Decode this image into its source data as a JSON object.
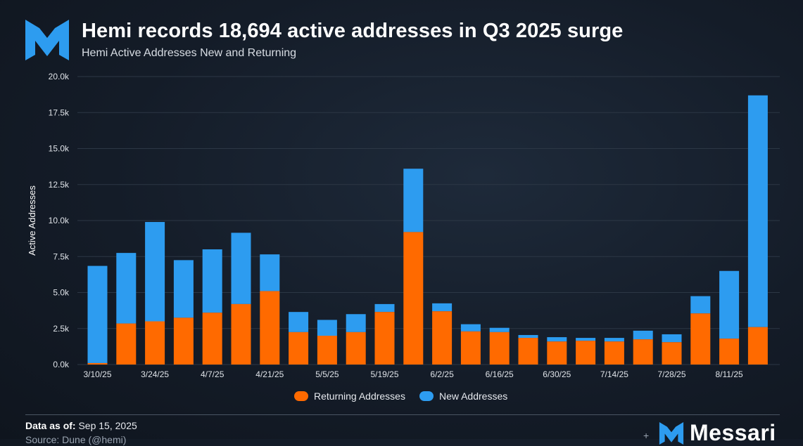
{
  "header": {
    "title": "Hemi records 18,694 active addresses in Q3 2025 surge",
    "subtitle": "Hemi Active Addresses New and Returning"
  },
  "colors": {
    "returning": "#ff6a00",
    "new": "#2d9cf0",
    "brand": "#2d9cf0",
    "grid": "#2c3745"
  },
  "chart_data": {
    "type": "bar",
    "stacked": true,
    "title": "Hemi records 18,694 active addresses in Q3 2025 surge",
    "subtitle": "Hemi Active Addresses New and Returning",
    "ylabel": "Active Addresses",
    "xlabel": "",
    "ylim": [
      0,
      20000
    ],
    "yticks": [
      "0.0k",
      "2.5k",
      "5.0k",
      "7.5k",
      "10.0k",
      "12.5k",
      "15.0k",
      "17.5k",
      "20.0k"
    ],
    "xtick_labels": [
      "3/10/25",
      "3/24/25",
      "4/7/25",
      "4/21/25",
      "5/5/25",
      "5/19/25",
      "6/2/25",
      "6/16/25",
      "6/30/25",
      "7/14/25",
      "7/28/25",
      "8/11/25"
    ],
    "categories": [
      "3/10/25",
      "3/17/25",
      "3/24/25",
      "3/31/25",
      "4/7/25",
      "4/14/25",
      "4/21/25",
      "4/28/25",
      "5/5/25",
      "5/12/25",
      "5/19/25",
      "5/26/25",
      "6/2/25",
      "6/9/25",
      "6/16/25",
      "6/23/25",
      "6/30/25",
      "7/7/25",
      "7/14/25",
      "7/21/25",
      "7/28/25",
      "8/4/25",
      "8/11/25",
      "8/18/25"
    ],
    "series": [
      {
        "name": "Returning Addresses",
        "values": [
          100,
          2850,
          3000,
          3250,
          3600,
          4200,
          5100,
          2250,
          2000,
          2250,
          3650,
          9200,
          3700,
          2300,
          2250,
          1850,
          1600,
          1650,
          1600,
          1750,
          1550,
          3550,
          1800,
          2600
        ]
      },
      {
        "name": "New Addresses",
        "values": [
          6750,
          4900,
          6900,
          4000,
          4400,
          4950,
          2550,
          1400,
          1100,
          1250,
          550,
          4400,
          550,
          500,
          300,
          200,
          300,
          200,
          250,
          600,
          550,
          1200,
          4700,
          16094
        ]
      }
    ],
    "legend": "bottom-center"
  },
  "legend": {
    "returning_label": "Returning Addresses",
    "new_label": "New Addresses"
  },
  "footer": {
    "data_as_of_label": "Data as of:",
    "data_as_of_value": "Sep 15, 2025",
    "source": "Source: Dune (@hemi)",
    "brand": "Messari"
  }
}
